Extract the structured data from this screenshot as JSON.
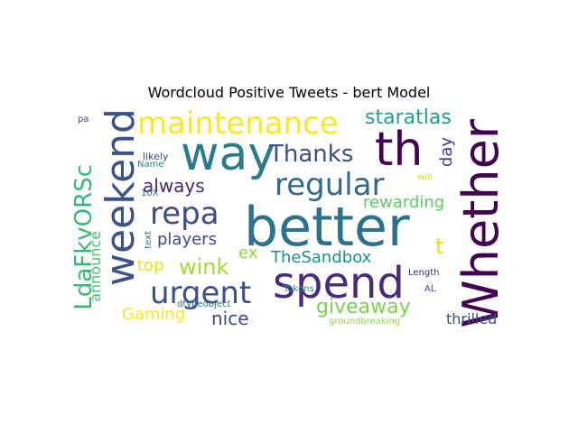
{
  "title": "Wordcloud Positive Tweets - bert Model",
  "words": [
    {
      "text": "better",
      "color": "#2c728e"
    },
    {
      "text": "spend",
      "color": "#472c7a"
    },
    {
      "text": "Whether",
      "color": "#440154"
    },
    {
      "text": "weekend",
      "color": "#3b528b"
    },
    {
      "text": "way",
      "color": "#297b8e"
    },
    {
      "text": "th",
      "color": "#440154"
    },
    {
      "text": "maintenance",
      "color": "#fde725"
    },
    {
      "text": "urgent",
      "color": "#3b528b"
    },
    {
      "text": "regular",
      "color": "#31688e"
    },
    {
      "text": "repa",
      "color": "#3e4c8a"
    },
    {
      "text": "Thanks",
      "color": "#3d4e8a"
    },
    {
      "text": "LdaFkvORSc",
      "color": "#35b779"
    },
    {
      "text": "staratlas",
      "color": "#1f9e89"
    },
    {
      "text": "giveaway",
      "color": "#7ad151"
    },
    {
      "text": "wink",
      "color": "#a5db36"
    },
    {
      "text": "TheSandbox",
      "color": "#21908d"
    },
    {
      "text": "rewarding",
      "color": "#5ec962"
    },
    {
      "text": "always",
      "color": "#482878"
    },
    {
      "text": "players",
      "color": "#3e4a89"
    },
    {
      "text": "nice",
      "color": "#3e4989"
    },
    {
      "text": "thrilled",
      "color": "#3e4c8a"
    },
    {
      "text": "Gaming",
      "color": "#fde725"
    },
    {
      "text": "top",
      "color": "#e5e419"
    },
    {
      "text": "announce",
      "color": "#48c16e"
    },
    {
      "text": "day",
      "color": "#443983"
    },
    {
      "text": "t",
      "color": "#dde318"
    },
    {
      "text": "ex",
      "color": "#8fd744"
    },
    {
      "text": "10X",
      "color": "#31688e"
    },
    {
      "text": "likely",
      "color": "#3e4a89"
    },
    {
      "text": "Name",
      "color": "#25848e"
    },
    {
      "text": "will",
      "color": "#dfe318"
    },
    {
      "text": "text",
      "color": "#2a788e"
    },
    {
      "text": "Tokens",
      "color": "#23898e"
    },
    {
      "text": "Length",
      "color": "#482878"
    },
    {
      "text": "AL",
      "color": "#3e4989"
    },
    {
      "text": "dtypeobject",
      "color": "#2d718e"
    },
    {
      "text": "groundbreaking",
      "color": "#8fd744"
    },
    {
      "text": "pa",
      "color": "#3e4989"
    }
  ]
}
